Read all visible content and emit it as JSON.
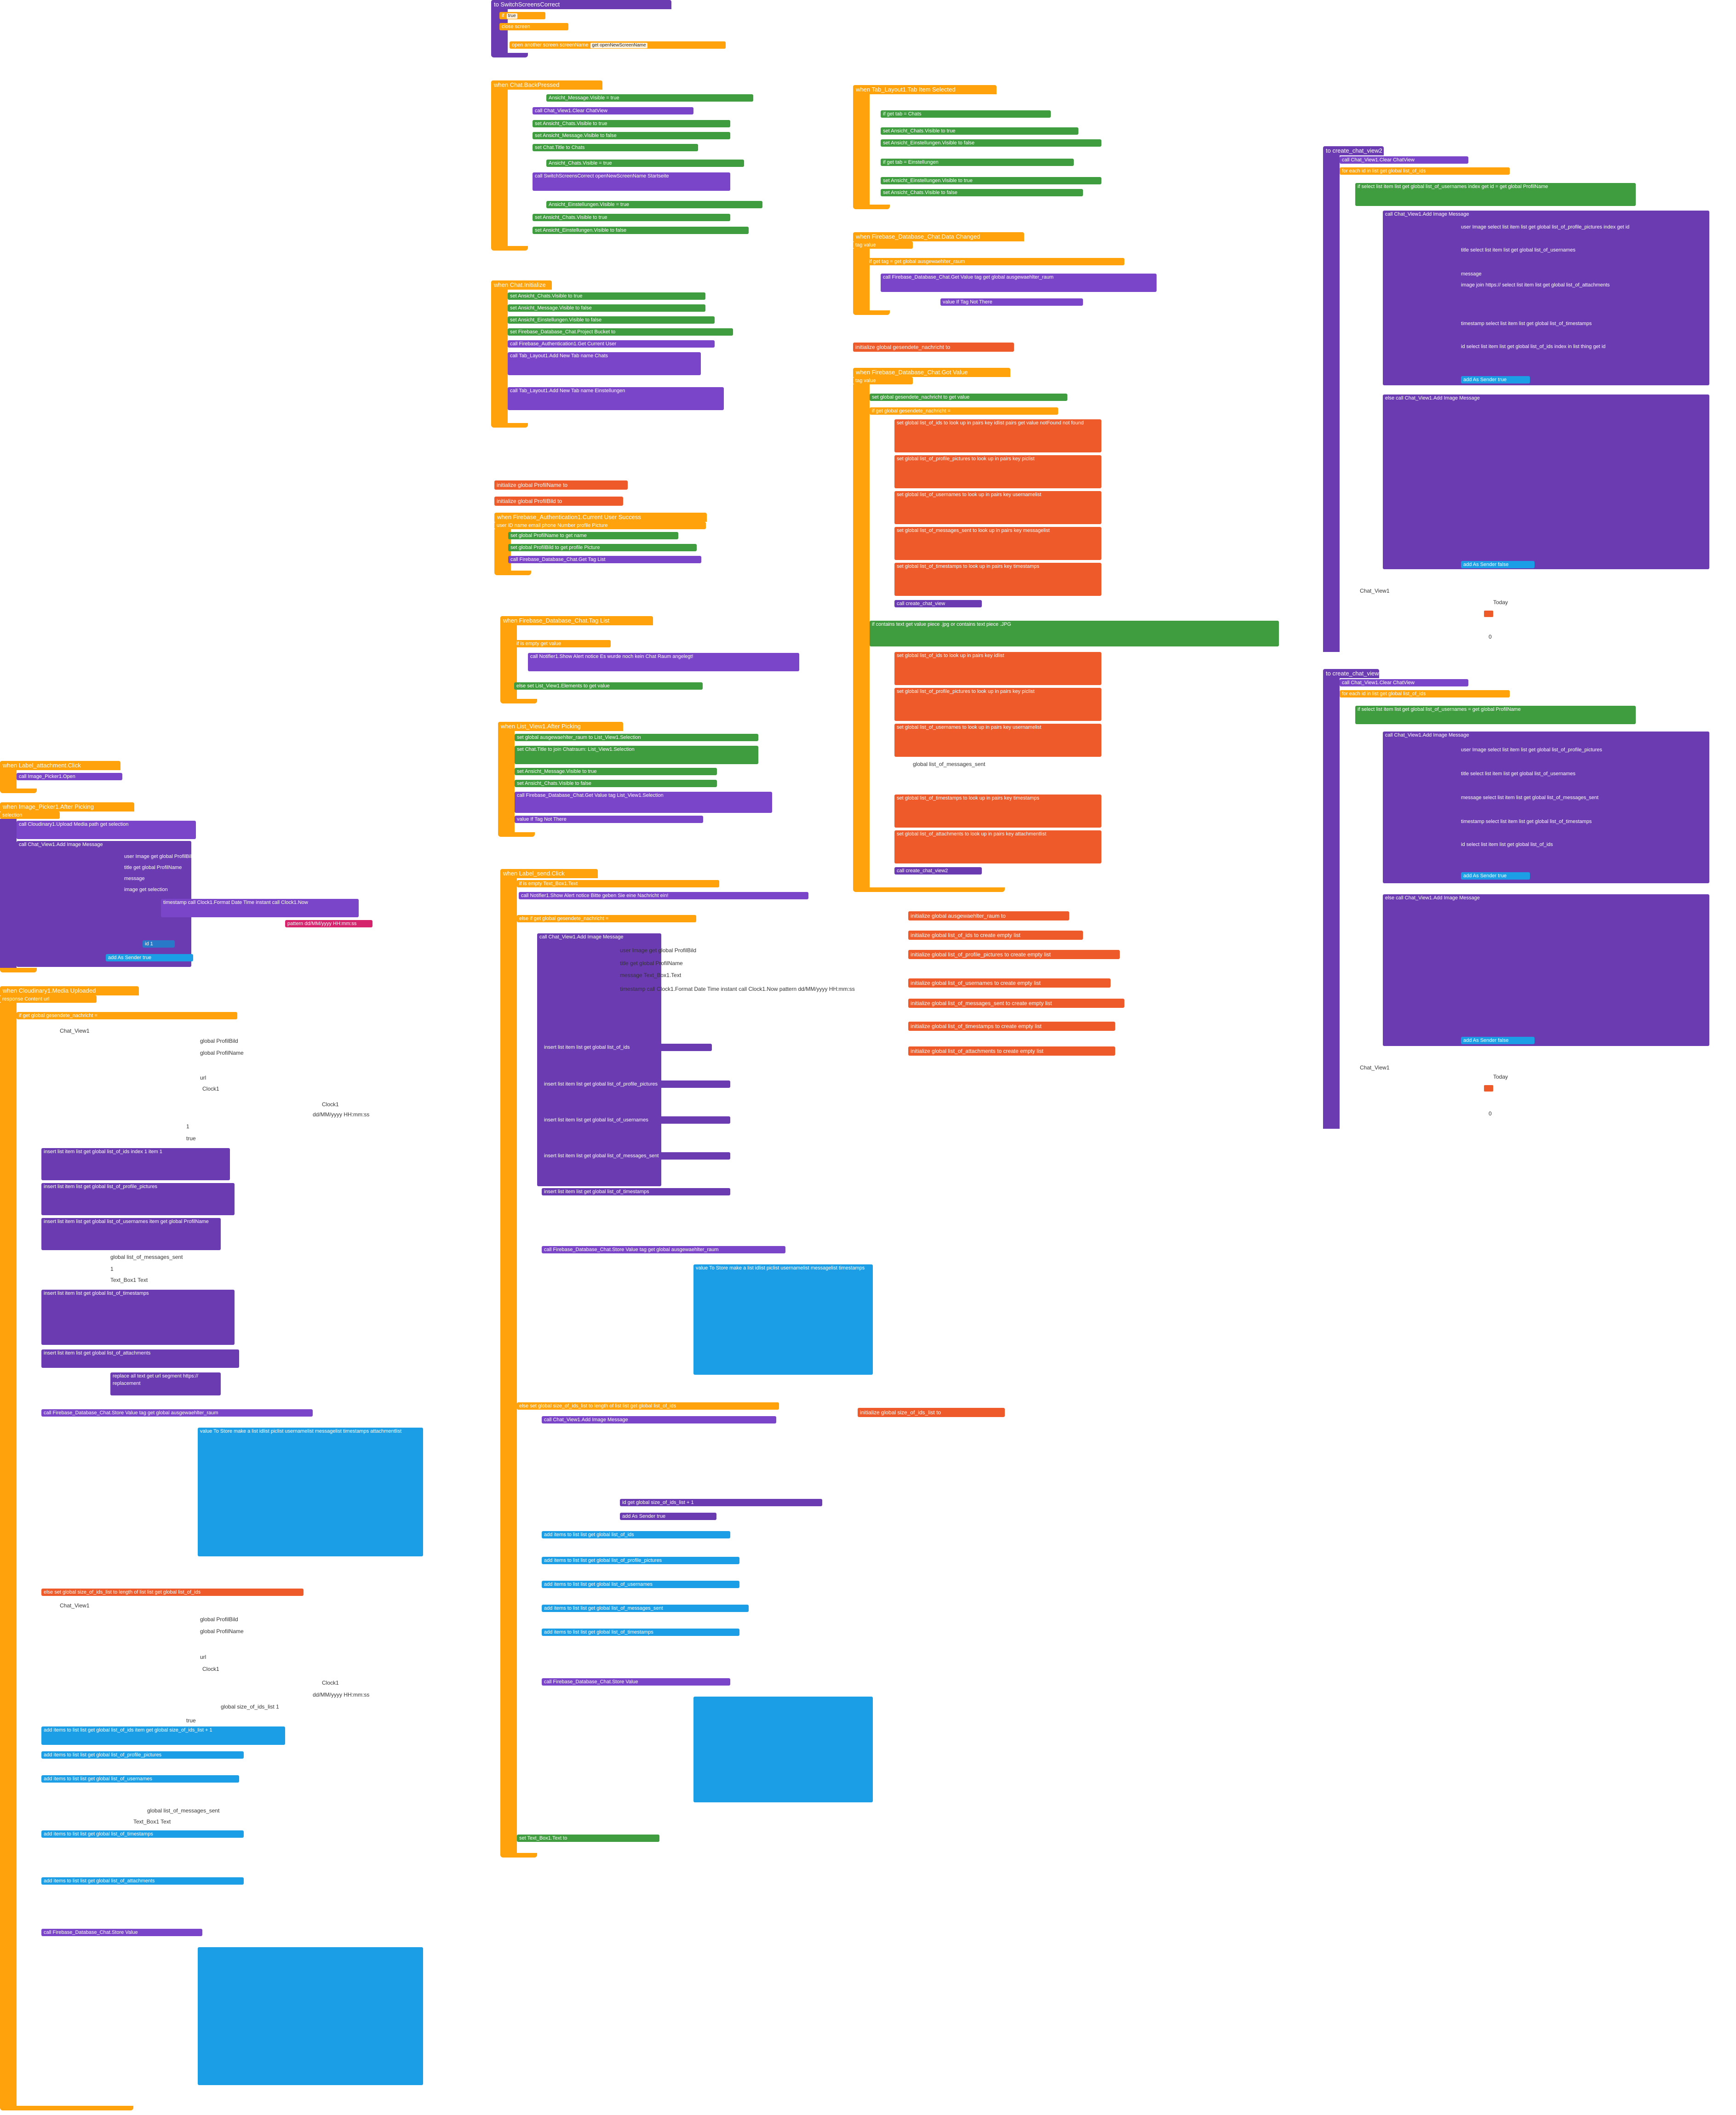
{
  "blocks": {
    "switch_screen": {
      "event": "to SwitchScreensCorrect",
      "param": "openNewScreenName",
      "cond": "true",
      "then": "close screen",
      "action": "open another screen  screenName",
      "arg": "get openNewScreenName"
    },
    "chat_back": {
      "event": "when Chat.BackPressed",
      "rows": [
        "Ansicht_Message.Visible = true",
        "call Chat_View1.Clear ChatView",
        "set Ansicht_Chats.Visible to true",
        "set Ansicht_Message.Visible to false",
        "set Chat.Title to Chats",
        "Ansicht_Chats.Visible = true",
        "call SwitchScreensCorrect openNewScreenName Startseite",
        "Ansicht_Einstellungen.Visible = true",
        "set Ansicht_Chats.Visible to true",
        "set Ansicht_Einstellungen.Visible to false"
      ]
    },
    "chat_init": {
      "event": "when Chat.Initialize",
      "rows": [
        "set Ansicht_Chats.Visible to true",
        "set Ansicht_Message.Visible to false",
        "set Ansicht_Einstellungen.Visible to false",
        "set Firebase_Database_Chat.Project Bucket to",
        "call Firebase_Authentication1.Get Current User",
        "call Tab_Layout1.Add New Tab  name Chats",
        "icon",
        "call Tab_Layout1.Add New Tab  name Einstellungen",
        "icon"
      ]
    },
    "globals_profile": [
      "initialize global ProfilName to",
      "initialize global ProfilBild to"
    ],
    "auth_success": {
      "event": "when Firebase_Authentication1.Current User Success",
      "params": "user ID  name  email  phone Number  profile Picture",
      "rows": [
        "set global ProfilName to get name",
        "set global ProfilBild to get profile Picture",
        "call Firebase_Database_Chat.Get Tag List"
      ]
    },
    "tag_list": {
      "event": "when Firebase_Database_Chat.Tag List",
      "param": "value",
      "rows": [
        "if is empty get value",
        "call Notifier1.Show Alert  notice Es wurde noch kein Chat Raum angelegt!",
        "else set List_View1.Elements to get value"
      ]
    },
    "after_picking": {
      "event": "when List_View1.After Picking",
      "rows": [
        "set global ausgewaehlter_raum to List_View1.Selection",
        "set Chat.Title to join Chatraum: List_View1.Selection",
        "set Ansicht_Message.Visible to true",
        "set Ansicht_Chats.Visible to false",
        "call Firebase_Database_Chat.Get Value  tag List_View1.Selection",
        "value If Tag Not There"
      ]
    },
    "tab_selected": {
      "event": "when Tab_Layout1.Tab Item Selected",
      "params": "tab  position",
      "rows": [
        "if get tab = Chats",
        "set Ansicht_Chats.Visible to true",
        "set Ansicht_Einstellungen.Visible to false",
        "if get tab = Einstellungen",
        "set Ansicht_Einstellungen.Visible to true",
        "set Ansicht_Chats.Visible to false"
      ]
    },
    "data_changed": {
      "event": "when Firebase_Database_Chat.Data Changed",
      "params": "tag  value",
      "rows": [
        "if get tag = get global ausgewaehlter_raum",
        "call Firebase_Database_Chat.Get Value  tag get global ausgewaehlter_raum",
        "value If Tag Not There"
      ]
    },
    "global_nachricht": "initialize global gesendete_nachricht to",
    "got_value": {
      "event": "when Firebase_Database_Chat.Got Value",
      "params": "tag  value",
      "rows": [
        "set global gesendete_nachricht to get value",
        "if get global gesendete_nachricht = ",
        "set global list_of_ids to look up in pairs key idlist pairs get value notFound not found",
        "set global list_of_profile_pictures to look up in pairs key piclist",
        "set global list_of_usernames to look up in pairs key usernamelist",
        "set global list_of_messages_sent to look up in pairs key messagelist",
        "set global list_of_timestamps to look up in pairs key timestamps",
        "call create_chat_view",
        "if contains text get value piece .jpg or contains text piece .JPG",
        "set global list_of_ids to look up in pairs key idlist",
        "set global list_of_profile_pictures to look up in pairs key piclist",
        "set global list_of_usernames to look up in pairs key usernamelist",
        "global list_of_messages_sent",
        "set global list_of_timestamps to look up in pairs key timestamps",
        "set global list_of_attachments to look up in pairs key attachmentlist",
        "call create_chat_view2"
      ]
    },
    "globals_lists": [
      "initialize global ausgewaehlter_raum to",
      "initialize global list_of_ids to create empty list",
      "initialize global list_of_profile_pictures to create empty list",
      "initialize global list_of_usernames to create empty list",
      "initialize global list_of_messages_sent to create empty list",
      "initialize global list_of_timestamps to create empty list",
      "initialize global list_of_attachments to create empty list"
    ],
    "global_size": "initialize global size_of_ids_list to",
    "create_chat_view2": {
      "event": "to create_chat_view2",
      "rows": [
        "call Chat_View1.Clear ChatView",
        "for each id in list get global list_of_ids",
        "if select list item list get global list_of_usernames index get id = get global ProfilName",
        "call Chat_View1.Add Image Message",
        "user Image  select list item list get global list_of_profile_pictures index get id",
        "title  select list item list get global list_of_usernames",
        "message",
        "image  join https:// select list item list get global list_of_attachments",
        "timestamp  select list item list get global list_of_timestamps",
        "id  select list item list get global list_of_ids index in list thing get id",
        "add As Sender true",
        "else call Chat_View1.Add Image Message",
        "add As Sender false"
      ],
      "footer": "Chat_View1",
      "today": "Today",
      "zero": "0"
    },
    "create_chat_view": {
      "event": "to create_chat_view",
      "rows": [
        "call Chat_View1.Clear ChatView",
        "for each id in list get global list_of_ids",
        "if select list item list get global list_of_usernames = get global ProfilName",
        "call Chat_View1.Add Image Message",
        "user Image  select list item list get global list_of_profile_pictures",
        "title  select list item list get global list_of_usernames",
        "message  select list item list get global list_of_messages_sent",
        "timestamp  select list item list get global list_of_timestamps",
        "id  select list item list get global list_of_ids",
        "add As Sender true",
        "else call Chat_View1.Add Image Message",
        "add As Sender false"
      ],
      "footer": "Chat_View1",
      "today": "Today",
      "zero": "0"
    },
    "label_attachment": {
      "event": "when Label_attachment.Click",
      "rows": [
        "call Image_Picker1.Open"
      ]
    },
    "image_picker": {
      "event": "when Image_Picker1.After Picking",
      "param": "selection",
      "rows": [
        "call Cloudinary1.Upload Media  path get selection",
        "call Chat_View1.Add Image Message",
        "user Image get global ProfilBild",
        "title get global ProfilName",
        "message",
        "image get selection",
        "timestamp call Clock1.Format Date Time  instant call Clock1.Now",
        "pattern dd/MM/yyyy HH:mm:ss",
        "id 1",
        "add As Sender true"
      ]
    },
    "media_uploaded": {
      "event": "when Cloudinary1.Media Uploaded",
      "params": "response Content  url",
      "rows": [
        "if get global gesendete_nachricht = ",
        "Chat_View1",
        "global ProfilBild",
        "global ProfilName",
        "url",
        "Clock1",
        "Clock1",
        "dd/MM/yyyy HH:mm:ss",
        "1",
        "true",
        "insert list item list get global list_of_ids  index 1  item 1",
        "insert list item list get global list_of_profile_pictures",
        "insert list item list get global list_of_usernames  item get global ProfilName",
        "global list_of_messages_sent",
        "1",
        "Text_Box1   Text",
        "insert list item list get global list_of_timestamps",
        "insert list item list get global list_of_attachments",
        "replace all text get url  segment https://  replacement",
        "call Firebase_Database_Chat.Store Value  tag get global ausgewaehlter_raum",
        "value To Store  make a list  idlist  piclist  usernamelist  messagelist  timestamps  attachmentlist",
        "else set global size_of_ids_list to length of list list get global list_of_ids",
        "Chat_View1",
        "global ProfilBild",
        "global ProfilName",
        "url",
        "Clock1",
        "Clock1",
        "dd/MM/yyyy HH:mm:ss",
        "global size_of_ids_list   1",
        "true",
        "add items to list list get global list_of_ids  item get global size_of_ids_list + 1",
        "add items to list list get global list_of_profile_pictures",
        "add items to list list get global list_of_usernames",
        "global list_of_messages_sent",
        "Text_Box1   Text",
        "add items to list list get global list_of_timestamps",
        "add items to list list get global list_of_attachments",
        "call Firebase_Database_Chat.Store Value"
      ]
    },
    "label_send": {
      "event": "when Label_send.Click",
      "rows": [
        "if is empty Text_Box1.Text",
        "call Notifier1.Show Alert  notice Bitte geben Sie eine Nachricht ein!",
        "else if get global gesendete_nachricht = ",
        "call Chat_View1.Add Image Message",
        "user Image get global ProfilBild",
        "title get global ProfilName",
        "message Text_Box1.Text",
        "timestamp call Clock1.Format Date Time  instant call Clock1.Now  pattern dd/MM/yyyy HH:mm:ss",
        "id 1",
        "add As Sender true",
        "insert list item list get global list_of_ids",
        "insert list item list get global list_of_profile_pictures",
        "insert list item list get global list_of_usernames",
        "insert list item list get global list_of_messages_sent",
        "insert list item list get global list_of_timestamps",
        "call Firebase_Database_Chat.Store Value  tag get global ausgewaehlter_raum",
        "value To Store  make a list  idlist  piclist  usernamelist  messagelist  timestamps",
        "else set global size_of_ids_list to length of list list get global list_of_ids",
        "call Chat_View1.Add Image Message",
        "id get global size_of_ids_list + 1",
        "add As Sender true",
        "add items to list list get global list_of_ids",
        "add items to list list get global list_of_profile_pictures",
        "add items to list list get global list_of_usernames",
        "add items to list list get global list_of_messages_sent",
        "add items to list list get global list_of_timestamps",
        "call Firebase_Database_Chat.Store Value",
        "set Text_Box1.Text to"
      ]
    }
  }
}
